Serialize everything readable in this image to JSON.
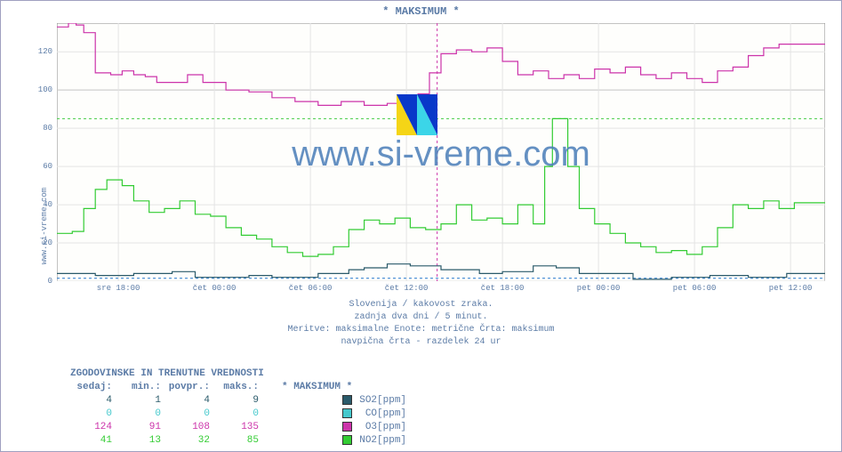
{
  "title": "* MAKSIMUM *",
  "ylabel": "www.si-vreme.com",
  "watermark": "www.si-vreme.com",
  "subtitles": [
    "Slovenija / kakovost zraka.",
    "zadnja dva dni / 5 minut.",
    "Meritve: maksimalne  Enote: metrične  Črta: maksimum",
    "navpična črta - razdelek 24 ur"
  ],
  "chart": {
    "background_color": "#fefefc",
    "grid_color": "#e4e4e4",
    "major_grid_color": "#c4c4c4",
    "border_color": "#888888",
    "ylim": [
      0,
      135
    ],
    "yticks": [
      0,
      20,
      40,
      60,
      80,
      100,
      120
    ],
    "ymajor": [
      100
    ],
    "xticks": [
      "sre 18:00",
      "čet 00:00",
      "čet 06:00",
      "čet 12:00",
      "čet 18:00",
      "pet 00:00",
      "pet 06:00",
      "pet 12:00"
    ],
    "xtick_pos": [
      0.08,
      0.205,
      0.33,
      0.455,
      0.58,
      0.705,
      0.83,
      0.955
    ],
    "vert_marker_x": 0.495,
    "vert_marker_color": "#cc33aa",
    "hline_y": 85,
    "hline_color": "#44cc44",
    "hline2_y": 1.5,
    "hline2_color": "#2277cc"
  },
  "series": [
    {
      "name": "O3[ppm]",
      "color": "#cc33aa",
      "data": [
        [
          0.0,
          133
        ],
        [
          0.015,
          133
        ],
        [
          0.015,
          135
        ],
        [
          0.025,
          135
        ],
        [
          0.025,
          134
        ],
        [
          0.035,
          134
        ],
        [
          0.035,
          130
        ],
        [
          0.05,
          130
        ],
        [
          0.05,
          109
        ],
        [
          0.07,
          109
        ],
        [
          0.07,
          108
        ],
        [
          0.085,
          108
        ],
        [
          0.085,
          110
        ],
        [
          0.1,
          110
        ],
        [
          0.1,
          108
        ],
        [
          0.115,
          108
        ],
        [
          0.115,
          107
        ],
        [
          0.13,
          107
        ],
        [
          0.13,
          104
        ],
        [
          0.145,
          104
        ],
        [
          0.145,
          104
        ],
        [
          0.17,
          104
        ],
        [
          0.17,
          108
        ],
        [
          0.19,
          108
        ],
        [
          0.19,
          104
        ],
        [
          0.22,
          104
        ],
        [
          0.22,
          100
        ],
        [
          0.25,
          100
        ],
        [
          0.25,
          99
        ],
        [
          0.28,
          99
        ],
        [
          0.28,
          96
        ],
        [
          0.31,
          96
        ],
        [
          0.31,
          94
        ],
        [
          0.34,
          94
        ],
        [
          0.34,
          92
        ],
        [
          0.37,
          92
        ],
        [
          0.37,
          94
        ],
        [
          0.4,
          94
        ],
        [
          0.4,
          92
        ],
        [
          0.43,
          92
        ],
        [
          0.43,
          93
        ],
        [
          0.45,
          93
        ],
        [
          0.45,
          91
        ],
        [
          0.47,
          91
        ],
        [
          0.47,
          98
        ],
        [
          0.485,
          98
        ],
        [
          0.485,
          109
        ],
        [
          0.5,
          109
        ],
        [
          0.5,
          119
        ],
        [
          0.52,
          119
        ],
        [
          0.52,
          121
        ],
        [
          0.54,
          121
        ],
        [
          0.54,
          120
        ],
        [
          0.56,
          120
        ],
        [
          0.56,
          122
        ],
        [
          0.58,
          122
        ],
        [
          0.58,
          115
        ],
        [
          0.6,
          115
        ],
        [
          0.6,
          108
        ],
        [
          0.62,
          108
        ],
        [
          0.62,
          110
        ],
        [
          0.64,
          110
        ],
        [
          0.64,
          106
        ],
        [
          0.66,
          106
        ],
        [
          0.66,
          108
        ],
        [
          0.68,
          108
        ],
        [
          0.68,
          106
        ],
        [
          0.7,
          106
        ],
        [
          0.7,
          111
        ],
        [
          0.72,
          111
        ],
        [
          0.72,
          109
        ],
        [
          0.74,
          109
        ],
        [
          0.74,
          112
        ],
        [
          0.76,
          112
        ],
        [
          0.76,
          108
        ],
        [
          0.78,
          108
        ],
        [
          0.78,
          106
        ],
        [
          0.8,
          106
        ],
        [
          0.8,
          109
        ],
        [
          0.82,
          109
        ],
        [
          0.82,
          106
        ],
        [
          0.84,
          106
        ],
        [
          0.84,
          104
        ],
        [
          0.86,
          104
        ],
        [
          0.86,
          110
        ],
        [
          0.88,
          110
        ],
        [
          0.88,
          112
        ],
        [
          0.9,
          112
        ],
        [
          0.9,
          118
        ],
        [
          0.92,
          118
        ],
        [
          0.92,
          122
        ],
        [
          0.94,
          122
        ],
        [
          0.94,
          124
        ],
        [
          0.98,
          124
        ],
        [
          0.98,
          124
        ],
        [
          1.0,
          124
        ]
      ]
    },
    {
      "name": "NO2[ppm]",
      "color": "#33cc33",
      "data": [
        [
          0.0,
          25
        ],
        [
          0.02,
          25
        ],
        [
          0.02,
          26
        ],
        [
          0.035,
          26
        ],
        [
          0.035,
          38
        ],
        [
          0.05,
          38
        ],
        [
          0.05,
          48
        ],
        [
          0.065,
          48
        ],
        [
          0.065,
          53
        ],
        [
          0.085,
          53
        ],
        [
          0.085,
          50
        ],
        [
          0.1,
          50
        ],
        [
          0.1,
          42
        ],
        [
          0.12,
          42
        ],
        [
          0.12,
          36
        ],
        [
          0.14,
          36
        ],
        [
          0.14,
          38
        ],
        [
          0.16,
          38
        ],
        [
          0.16,
          42
        ],
        [
          0.18,
          42
        ],
        [
          0.18,
          35
        ],
        [
          0.2,
          35
        ],
        [
          0.2,
          34
        ],
        [
          0.22,
          34
        ],
        [
          0.22,
          28
        ],
        [
          0.24,
          28
        ],
        [
          0.24,
          24
        ],
        [
          0.26,
          24
        ],
        [
          0.26,
          22
        ],
        [
          0.28,
          22
        ],
        [
          0.28,
          18
        ],
        [
          0.3,
          18
        ],
        [
          0.3,
          15
        ],
        [
          0.32,
          15
        ],
        [
          0.32,
          13
        ],
        [
          0.34,
          13
        ],
        [
          0.34,
          14
        ],
        [
          0.36,
          14
        ],
        [
          0.36,
          18
        ],
        [
          0.38,
          18
        ],
        [
          0.38,
          27
        ],
        [
          0.4,
          27
        ],
        [
          0.4,
          32
        ],
        [
          0.42,
          32
        ],
        [
          0.42,
          30
        ],
        [
          0.44,
          30
        ],
        [
          0.44,
          33
        ],
        [
          0.46,
          33
        ],
        [
          0.46,
          28
        ],
        [
          0.48,
          28
        ],
        [
          0.48,
          27
        ],
        [
          0.5,
          27
        ],
        [
          0.5,
          30
        ],
        [
          0.52,
          30
        ],
        [
          0.52,
          40
        ],
        [
          0.54,
          40
        ],
        [
          0.54,
          32
        ],
        [
          0.56,
          32
        ],
        [
          0.56,
          33
        ],
        [
          0.58,
          33
        ],
        [
          0.58,
          30
        ],
        [
          0.6,
          30
        ],
        [
          0.6,
          40
        ],
        [
          0.62,
          40
        ],
        [
          0.62,
          30
        ],
        [
          0.635,
          30
        ],
        [
          0.635,
          60
        ],
        [
          0.645,
          60
        ],
        [
          0.645,
          85
        ],
        [
          0.665,
          85
        ],
        [
          0.665,
          60
        ],
        [
          0.68,
          60
        ],
        [
          0.68,
          38
        ],
        [
          0.7,
          38
        ],
        [
          0.7,
          30
        ],
        [
          0.72,
          30
        ],
        [
          0.72,
          25
        ],
        [
          0.74,
          25
        ],
        [
          0.74,
          20
        ],
        [
          0.76,
          20
        ],
        [
          0.76,
          18
        ],
        [
          0.78,
          18
        ],
        [
          0.78,
          15
        ],
        [
          0.8,
          15
        ],
        [
          0.8,
          16
        ],
        [
          0.82,
          16
        ],
        [
          0.82,
          14
        ],
        [
          0.84,
          14
        ],
        [
          0.84,
          18
        ],
        [
          0.86,
          18
        ],
        [
          0.86,
          28
        ],
        [
          0.88,
          28
        ],
        [
          0.88,
          40
        ],
        [
          0.9,
          40
        ],
        [
          0.9,
          38
        ],
        [
          0.92,
          38
        ],
        [
          0.92,
          42
        ],
        [
          0.94,
          42
        ],
        [
          0.94,
          38
        ],
        [
          0.96,
          38
        ],
        [
          0.96,
          41
        ],
        [
          1.0,
          41
        ]
      ]
    },
    {
      "name": "SO2[ppm]",
      "color": "#2a5a6a",
      "data": [
        [
          0.0,
          4
        ],
        [
          0.05,
          4
        ],
        [
          0.05,
          3
        ],
        [
          0.1,
          3
        ],
        [
          0.1,
          4
        ],
        [
          0.15,
          4
        ],
        [
          0.15,
          5
        ],
        [
          0.18,
          5
        ],
        [
          0.18,
          2
        ],
        [
          0.25,
          2
        ],
        [
          0.25,
          3
        ],
        [
          0.28,
          3
        ],
        [
          0.28,
          2
        ],
        [
          0.34,
          2
        ],
        [
          0.34,
          4
        ],
        [
          0.38,
          4
        ],
        [
          0.38,
          6
        ],
        [
          0.4,
          6
        ],
        [
          0.4,
          7
        ],
        [
          0.43,
          7
        ],
        [
          0.43,
          9
        ],
        [
          0.46,
          9
        ],
        [
          0.46,
          8
        ],
        [
          0.5,
          8
        ],
        [
          0.5,
          6
        ],
        [
          0.55,
          6
        ],
        [
          0.55,
          4
        ],
        [
          0.58,
          4
        ],
        [
          0.58,
          5
        ],
        [
          0.62,
          5
        ],
        [
          0.62,
          8
        ],
        [
          0.65,
          8
        ],
        [
          0.65,
          7
        ],
        [
          0.68,
          7
        ],
        [
          0.68,
          4
        ],
        [
          0.75,
          4
        ],
        [
          0.75,
          1
        ],
        [
          0.8,
          1
        ],
        [
          0.8,
          2
        ],
        [
          0.85,
          2
        ],
        [
          0.85,
          3
        ],
        [
          0.9,
          3
        ],
        [
          0.9,
          2
        ],
        [
          0.95,
          2
        ],
        [
          0.95,
          4
        ],
        [
          1.0,
          4
        ]
      ]
    }
  ],
  "stats": {
    "header": "ZGODOVINSKE IN TRENUTNE VREDNOSTI",
    "cols": [
      "sedaj:",
      "min.:",
      "povpr.:",
      "maks.:",
      "* MAKSIMUM *"
    ],
    "rows": [
      {
        "sedaj": "4",
        "min": "1",
        "povpr": "4",
        "maks": "9",
        "label": "SO2[ppm]",
        "color": "#2a5a6a"
      },
      {
        "sedaj": "0",
        "min": "0",
        "povpr": "0",
        "maks": "0",
        "label": "CO[ppm]",
        "color": "#44c8cc"
      },
      {
        "sedaj": "124",
        "min": "91",
        "povpr": "108",
        "maks": "135",
        "label": "O3[ppm]",
        "color": "#cc33aa"
      },
      {
        "sedaj": "41",
        "min": "13",
        "povpr": "32",
        "maks": "85",
        "label": "NO2[ppm]",
        "color": "#33cc33"
      }
    ]
  }
}
